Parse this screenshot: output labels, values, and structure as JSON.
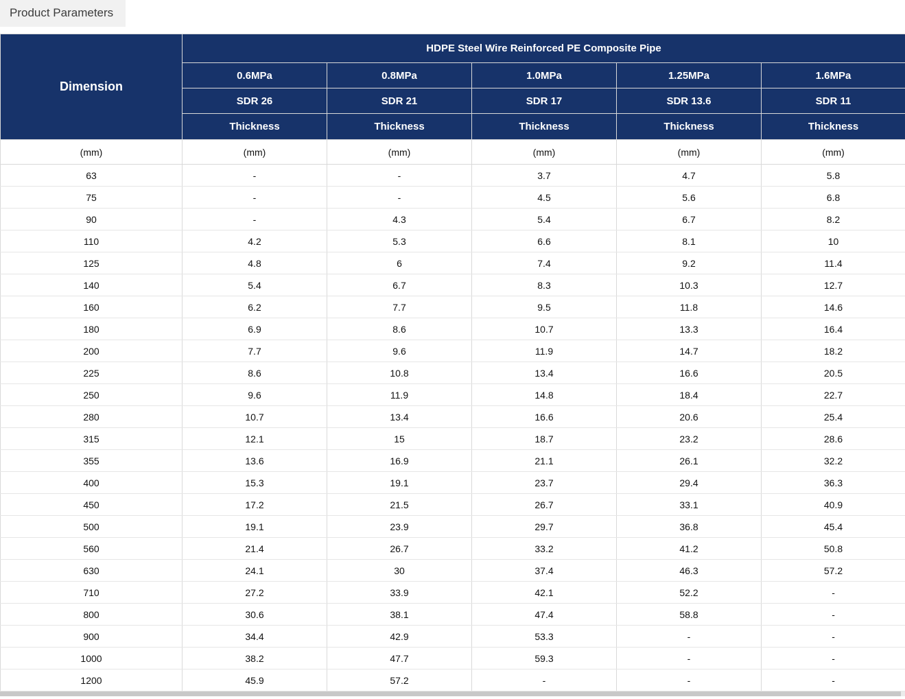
{
  "tab": {
    "label": "Product Parameters"
  },
  "table": {
    "group_title": "HDPE Steel Wire Reinforced PE Composite Pipe",
    "dimension_header": "Dimension",
    "dimension_unit": "(mm)",
    "columns": [
      {
        "pressure": "0.6MPa",
        "sdr": "SDR 26",
        "thickness_label": "Thickness",
        "unit": "(mm)"
      },
      {
        "pressure": "0.8MPa",
        "sdr": "SDR 21",
        "thickness_label": "Thickness",
        "unit": "(mm)"
      },
      {
        "pressure": "1.0MPa",
        "sdr": "SDR 17",
        "thickness_label": "Thickness",
        "unit": "(mm)"
      },
      {
        "pressure": "1.25MPa",
        "sdr": "SDR 13.6",
        "thickness_label": "Thickness",
        "unit": "(mm)"
      },
      {
        "pressure": "1.6MPa",
        "sdr": "SDR 11",
        "thickness_label": "Thickness",
        "unit": "(mm)"
      }
    ],
    "rows": [
      {
        "dimension": "63",
        "values": [
          "-",
          "-",
          "3.7",
          "4.7",
          "5.8"
        ]
      },
      {
        "dimension": "75",
        "values": [
          "-",
          "-",
          "4.5",
          "5.6",
          "6.8"
        ]
      },
      {
        "dimension": "90",
        "values": [
          "-",
          "4.3",
          "5.4",
          "6.7",
          "8.2"
        ]
      },
      {
        "dimension": "110",
        "values": [
          "4.2",
          "5.3",
          "6.6",
          "8.1",
          "10"
        ]
      },
      {
        "dimension": "125",
        "values": [
          "4.8",
          "6",
          "7.4",
          "9.2",
          "11.4"
        ]
      },
      {
        "dimension": "140",
        "values": [
          "5.4",
          "6.7",
          "8.3",
          "10.3",
          "12.7"
        ]
      },
      {
        "dimension": "160",
        "values": [
          "6.2",
          "7.7",
          "9.5",
          "11.8",
          "14.6"
        ]
      },
      {
        "dimension": "180",
        "values": [
          "6.9",
          "8.6",
          "10.7",
          "13.3",
          "16.4"
        ]
      },
      {
        "dimension": "200",
        "values": [
          "7.7",
          "9.6",
          "11.9",
          "14.7",
          "18.2"
        ]
      },
      {
        "dimension": "225",
        "values": [
          "8.6",
          "10.8",
          "13.4",
          "16.6",
          "20.5"
        ]
      },
      {
        "dimension": "250",
        "values": [
          "9.6",
          "11.9",
          "14.8",
          "18.4",
          "22.7"
        ]
      },
      {
        "dimension": "280",
        "values": [
          "10.7",
          "13.4",
          "16.6",
          "20.6",
          "25.4"
        ]
      },
      {
        "dimension": "315",
        "values": [
          "12.1",
          "15",
          "18.7",
          "23.2",
          "28.6"
        ]
      },
      {
        "dimension": "355",
        "values": [
          "13.6",
          "16.9",
          "21.1",
          "26.1",
          "32.2"
        ]
      },
      {
        "dimension": "400",
        "values": [
          "15.3",
          "19.1",
          "23.7",
          "29.4",
          "36.3"
        ]
      },
      {
        "dimension": "450",
        "values": [
          "17.2",
          "21.5",
          "26.7",
          "33.1",
          "40.9"
        ]
      },
      {
        "dimension": "500",
        "values": [
          "19.1",
          "23.9",
          "29.7",
          "36.8",
          "45.4"
        ]
      },
      {
        "dimension": "560",
        "values": [
          "21.4",
          "26.7",
          "33.2",
          "41.2",
          "50.8"
        ]
      },
      {
        "dimension": "630",
        "values": [
          "24.1",
          "30",
          "37.4",
          "46.3",
          "57.2"
        ]
      },
      {
        "dimension": "710",
        "values": [
          "27.2",
          "33.9",
          "42.1",
          "52.2",
          "-"
        ]
      },
      {
        "dimension": "800",
        "values": [
          "30.6",
          "38.1",
          "47.4",
          "58.8",
          "-"
        ]
      },
      {
        "dimension": "900",
        "values": [
          "34.4",
          "42.9",
          "53.3",
          "-",
          "-"
        ]
      },
      {
        "dimension": "1000",
        "values": [
          "38.2",
          "47.7",
          "59.3",
          "-",
          "-"
        ]
      },
      {
        "dimension": "1200",
        "values": [
          "45.9",
          "57.2",
          "-",
          "-",
          "-"
        ]
      }
    ]
  },
  "colors": {
    "header_bg": "#17336a",
    "header_text": "#ffffff",
    "tab_bg": "#f1f1f1",
    "border_light": "#d9d9d9",
    "scrollbar_thumb": "#c8c8c8"
  }
}
